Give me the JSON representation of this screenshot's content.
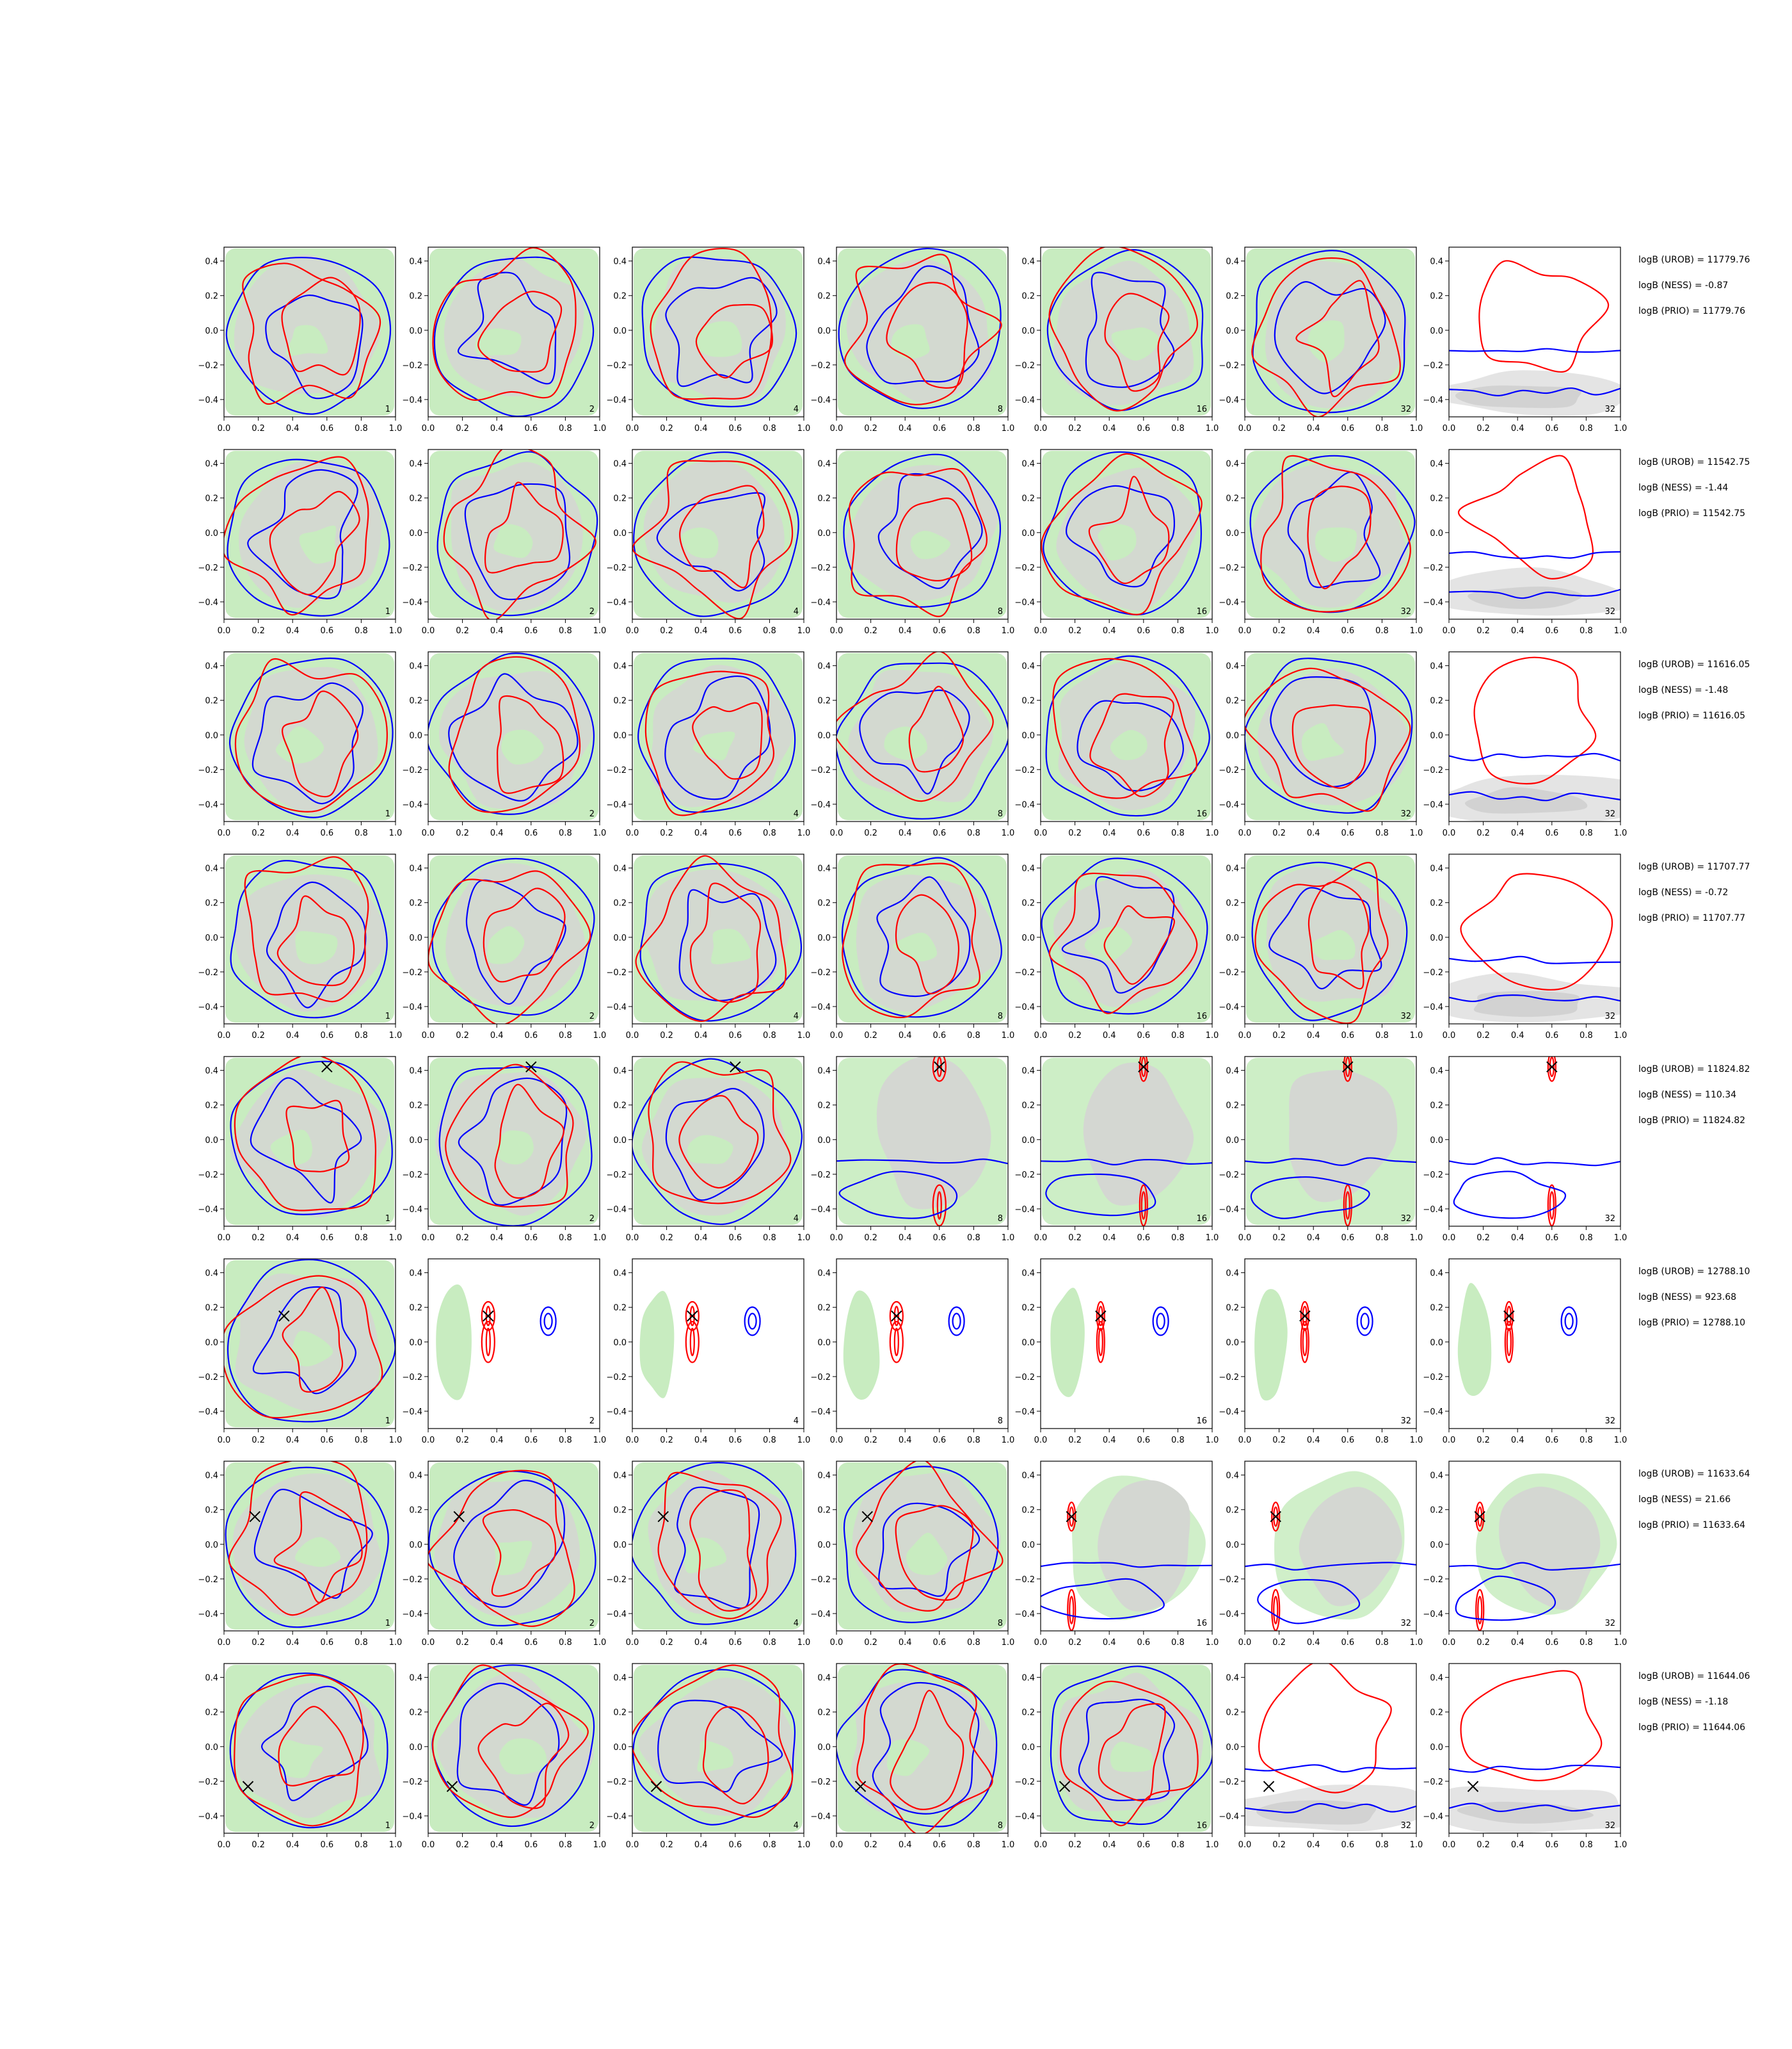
{
  "chart_data": {
    "type": "contour",
    "layout": "8 rows x 7 columns of contour panels",
    "x_ticks": [
      "0.0",
      "0.2",
      "0.4",
      "0.6",
      "0.8",
      "1.0"
    ],
    "y_ticks": [
      "0.4",
      "0.2",
      "0.0",
      "−0.2",
      "−0.4"
    ],
    "xlim": [
      0,
      1
    ],
    "ylim": [
      -0.5,
      0.48
    ],
    "panel_labels": [
      "1",
      "2",
      "4",
      "8",
      "16",
      "32",
      "32"
    ],
    "colors": {
      "red_contour": "#ff0000",
      "blue_contour": "#0000ff",
      "green_fill": "#c8ecc0",
      "gray_fill": "#d4d7d2",
      "marker": "#000000"
    },
    "rows": [
      {
        "marker": null,
        "annotations": [
          "logB (UROB) = 11779.76",
          "logB (NESS) = -0.87",
          "logB (PRIO) = 11779.76"
        ]
      },
      {
        "marker": null,
        "annotations": [
          "logB (UROB) = 11542.75",
          "logB (NESS) = -1.44",
          "logB (PRIO) = 11542.75"
        ]
      },
      {
        "marker": null,
        "annotations": [
          "logB (UROB) = 11616.05",
          "logB (NESS) = -1.48",
          "logB (PRIO) = 11616.05"
        ]
      },
      {
        "marker": null,
        "annotations": [
          "logB (UROB) = 11707.77",
          "logB (NESS) = -0.72",
          "logB (PRIO) = 11707.77"
        ]
      },
      {
        "marker": [
          0.6,
          0.42
        ],
        "annotations": [
          "logB (UROB) = 11824.82",
          "logB (NESS) = 110.34",
          "logB (PRIO) = 11824.82"
        ]
      },
      {
        "marker": [
          0.35,
          0.15
        ],
        "annotations": [
          "logB (UROB) = 12788.10",
          "logB (NESS) = 923.68",
          "logB (PRIO) = 12788.10"
        ]
      },
      {
        "marker": [
          0.18,
          0.16
        ],
        "annotations": [
          "logB (UROB) = 11633.64",
          "logB (NESS) = 21.66",
          "logB (PRIO) = 11633.64"
        ]
      },
      {
        "marker": [
          0.14,
          -0.23
        ],
        "annotations": [
          "logB (UROB) = 11644.06",
          "logB (NESS) = -1.18",
          "logB (PRIO) = 11644.06"
        ]
      }
    ]
  }
}
